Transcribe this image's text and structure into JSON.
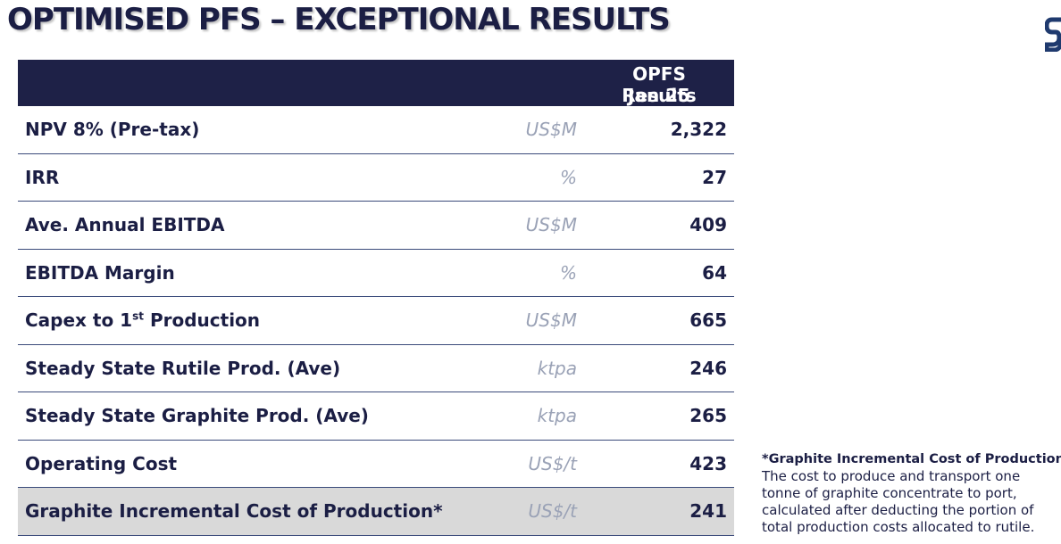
{
  "title": "OPTIMISED PFS – EXCEPTIONAL RESULTS",
  "colors": {
    "header_bg": "#1e2147",
    "text": "#1b1e44",
    "unit": "#9aa2b6",
    "shade": "#d9d9d9"
  },
  "table": {
    "header_line1": "OPFS Results",
    "header_line2": "Jan 25",
    "rows": [
      {
        "label": "NPV 8% (Pre-tax)",
        "unit": "US$M",
        "value": "2,322"
      },
      {
        "label": "IRR",
        "unit": "%",
        "value": "27"
      },
      {
        "label": "Ave. Annual EBITDA",
        "unit": "US$M",
        "value": "409"
      },
      {
        "label": "EBITDA Margin",
        "unit": "%",
        "value": "64"
      },
      {
        "label_pre": "Capex to 1",
        "label_sup": "st",
        "label_post": " Production",
        "unit": "US$M",
        "value": "665"
      },
      {
        "label": "Steady State Rutile Prod. (Ave)",
        "unit": "ktpa",
        "value": "246"
      },
      {
        "label": "Steady State Graphite Prod. (Ave)",
        "unit": "ktpa",
        "value": "265"
      },
      {
        "label": "Operating Cost",
        "unit": "US$/t",
        "value": "423"
      },
      {
        "label": "Graphite Incremental Cost of Production*",
        "unit": "US$/t",
        "value": "241"
      }
    ]
  },
  "footnote": {
    "heading": "*Graphite Incremental Cost of Production:",
    "body": "The cost to produce and transport one tonne of graphite concentrate to port, calculated after deducting the portion of total production costs allocated to rutile."
  }
}
